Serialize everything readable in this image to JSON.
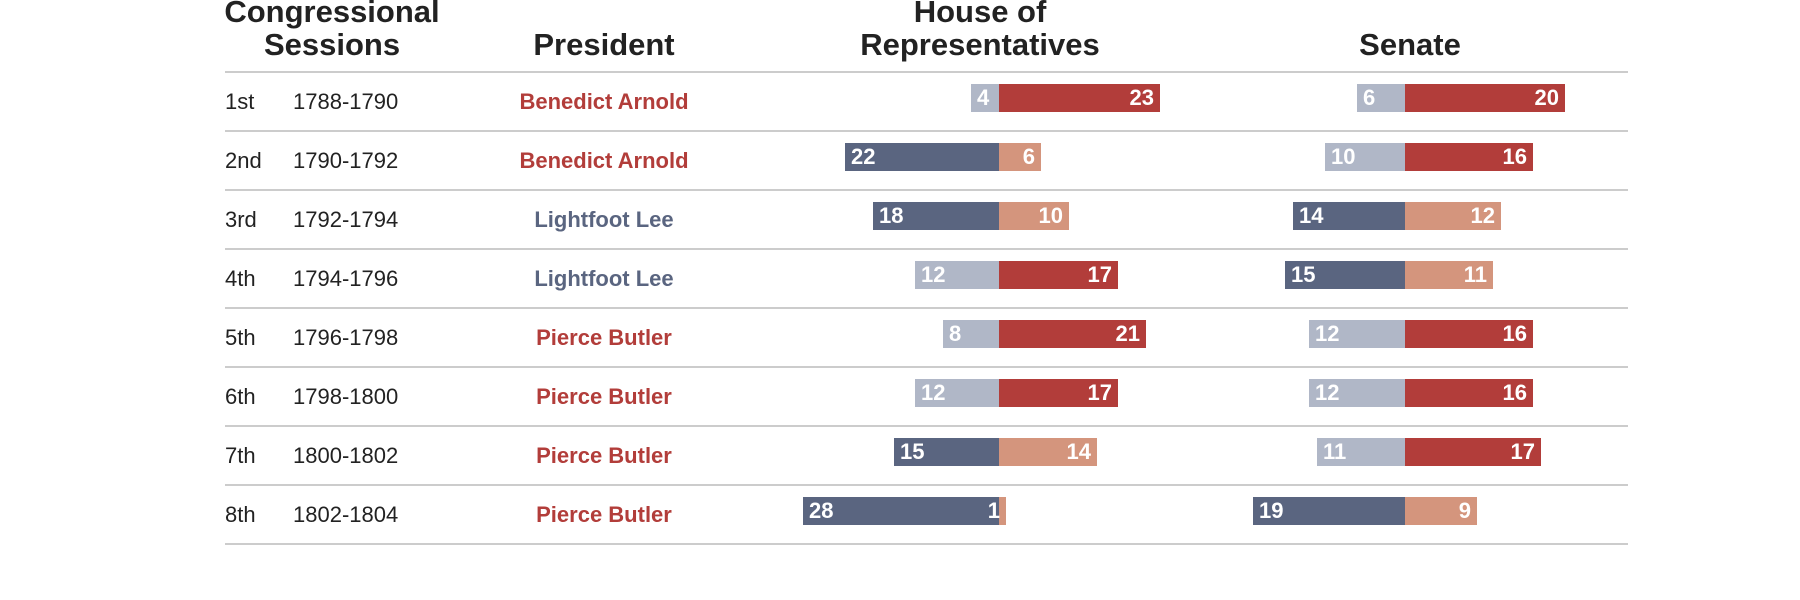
{
  "headers": {
    "sessions": [
      "Congressional",
      "Sessions"
    ],
    "president": "President",
    "house": [
      "House of",
      "Representatives"
    ],
    "senate": "Senate"
  },
  "colors": {
    "opposition_strong": "#5a6580",
    "opposition_weak": "#b0b7c7",
    "majority_strong": "#b23d3a",
    "majority_weak": "#d4957d",
    "president_red": "#b23d3a",
    "president_blue": "#5a6580",
    "rule": "#cccccc"
  },
  "chart_data": {
    "type": "table",
    "columns": [
      "Congressional Sessions",
      "President",
      "House of Representatives",
      "Senate"
    ],
    "rows": [
      {
        "session": "1st",
        "years": "1788-1790",
        "president": "Benedict Arnold",
        "president_color": "red",
        "house": {
          "left": 4,
          "right": 23,
          "left_shade": "weak",
          "right_shade": "strong"
        },
        "senate": {
          "left": 6,
          "right": 20,
          "left_shade": "weak",
          "right_shade": "strong"
        }
      },
      {
        "session": "2nd",
        "years": "1790-1792",
        "president": "Benedict Arnold",
        "president_color": "red",
        "house": {
          "left": 22,
          "right": 6,
          "left_shade": "strong",
          "right_shade": "weak"
        },
        "senate": {
          "left": 10,
          "right": 16,
          "left_shade": "weak",
          "right_shade": "strong"
        }
      },
      {
        "session": "3rd",
        "years": "1792-1794",
        "president": "Lightfoot Lee",
        "president_color": "blue",
        "house": {
          "left": 18,
          "right": 10,
          "left_shade": "strong",
          "right_shade": "weak"
        },
        "senate": {
          "left": 14,
          "right": 12,
          "left_shade": "strong",
          "right_shade": "weak"
        }
      },
      {
        "session": "4th",
        "years": "1794-1796",
        "president": "Lightfoot Lee",
        "president_color": "blue",
        "house": {
          "left": 12,
          "right": 17,
          "left_shade": "weak",
          "right_shade": "strong"
        },
        "senate": {
          "left": 15,
          "right": 11,
          "left_shade": "strong",
          "right_shade": "weak"
        }
      },
      {
        "session": "5th",
        "years": "1796-1798",
        "president": "Pierce Butler",
        "president_color": "red",
        "house": {
          "left": 8,
          "right": 21,
          "left_shade": "weak",
          "right_shade": "strong"
        },
        "senate": {
          "left": 12,
          "right": 16,
          "left_shade": "weak",
          "right_shade": "strong"
        }
      },
      {
        "session": "6th",
        "years": "1798-1800",
        "president": "Pierce Butler",
        "president_color": "red",
        "house": {
          "left": 12,
          "right": 17,
          "left_shade": "weak",
          "right_shade": "strong"
        },
        "senate": {
          "left": 12,
          "right": 16,
          "left_shade": "weak",
          "right_shade": "strong"
        }
      },
      {
        "session": "7th",
        "years": "1800-1802",
        "president": "Pierce Butler",
        "president_color": "red",
        "house": {
          "left": 15,
          "right": 14,
          "left_shade": "strong",
          "right_shade": "weak"
        },
        "senate": {
          "left": 11,
          "right": 17,
          "left_shade": "weak",
          "right_shade": "strong"
        }
      },
      {
        "session": "8th",
        "years": "1802-1804",
        "president": "Pierce Butler",
        "president_color": "red",
        "house": {
          "left": 28,
          "right": 1,
          "left_shade": "strong",
          "right_shade": "weak"
        },
        "senate": {
          "left": 19,
          "right": 9,
          "left_shade": "strong",
          "right_shade": "weak"
        }
      }
    ]
  }
}
